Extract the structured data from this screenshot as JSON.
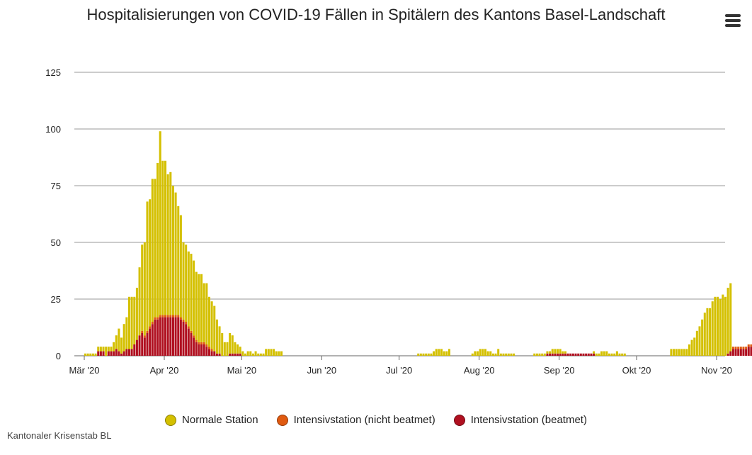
{
  "title": "Hospitalisierungen von COVID-19 Fällen in Spitälern des Kantons Basel-Landschaft",
  "credits": "Kantonaler Krisenstab BL",
  "menu_icon": "hamburger-menu-icon",
  "legend": [
    {
      "name": "Normale Station",
      "color": "#d4c000"
    },
    {
      "name": "Intensivstation (nicht beatmet)",
      "color": "#e05a10"
    },
    {
      "name": "Intensivstation (beatmet)",
      "color": "#b01020"
    }
  ],
  "chart_data": {
    "type": "bar",
    "stacked": true,
    "x_start": "2020-03-01",
    "x_labels": [
      "Mär '20",
      "Apr '20",
      "Mai '20",
      "Jun '20",
      "Jul '20",
      "Aug '20",
      "Sep '20",
      "Okt '20",
      "Nov '20"
    ],
    "y_ticks": [
      0,
      25,
      50,
      75,
      100,
      125
    ],
    "ylim": [
      0,
      125
    ],
    "grid": true,
    "legend_position": "bottom",
    "series": [
      {
        "name": "Intensivstation (beatmet)",
        "color": "#b01020",
        "values": [
          0,
          0,
          0,
          0,
          0,
          2,
          2,
          2,
          0,
          2,
          2,
          2,
          3,
          2,
          1,
          2,
          3,
          3,
          3,
          5,
          7,
          9,
          10,
          8,
          10,
          12,
          14,
          16,
          16,
          17,
          17,
          17,
          17,
          17,
          17,
          17,
          17,
          16,
          15,
          14,
          12,
          10,
          8,
          6,
          5,
          5,
          5,
          4,
          3,
          2,
          2,
          1,
          1,
          0,
          0,
          0,
          1,
          1,
          1,
          1,
          1,
          0,
          0,
          0,
          0,
          0,
          0,
          0,
          0,
          0,
          0,
          0,
          0,
          0,
          0,
          0,
          0,
          0,
          0,
          0,
          0,
          0,
          0,
          0,
          0,
          0,
          0,
          0,
          0,
          0,
          0,
          0,
          0,
          0,
          0,
          0,
          0,
          0,
          0,
          0,
          0,
          0,
          0,
          0,
          0,
          0,
          0,
          0,
          0,
          0,
          0,
          0,
          0,
          0,
          0,
          0,
          0,
          0,
          0,
          0,
          0,
          0,
          0,
          0,
          0,
          0,
          0,
          0,
          0,
          0,
          0,
          0,
          0,
          0,
          0,
          0,
          0,
          0,
          0,
          0,
          0,
          0,
          0,
          0,
          0,
          0,
          0,
          0,
          0,
          0,
          0,
          0,
          0,
          0,
          0,
          0,
          0,
          0,
          0,
          0,
          0,
          0,
          0,
          0,
          0,
          0,
          0,
          0,
          0,
          0,
          0,
          0,
          0,
          0,
          0,
          0,
          0,
          0,
          0,
          1,
          1,
          1,
          1,
          1,
          1,
          1,
          1,
          1,
          1,
          1,
          1,
          1,
          1,
          1,
          1,
          1,
          1,
          1,
          0,
          0,
          0,
          0,
          0,
          0,
          0,
          0,
          0,
          0,
          0,
          0,
          0,
          0,
          0,
          0,
          0,
          0,
          0,
          0,
          0,
          0,
          0,
          0,
          0,
          0,
          0,
          0,
          0,
          0,
          0,
          0,
          0,
          0,
          0,
          0,
          0,
          0,
          0,
          0,
          0,
          0,
          0,
          0,
          0,
          0,
          0,
          0,
          0,
          0,
          0,
          1,
          2,
          3,
          3,
          3,
          3,
          3,
          3,
          4,
          4,
          3,
          3,
          4,
          4,
          3
        ]
      },
      {
        "name": "Intensivstation (nicht beatmet)",
        "color": "#e05a10",
        "values": [
          0,
          0,
          0,
          0,
          0,
          0,
          0,
          0,
          0,
          0,
          0,
          0,
          0,
          0,
          0,
          0,
          0,
          0,
          0,
          0,
          0,
          0,
          1,
          1,
          1,
          1,
          1,
          1,
          1,
          1,
          1,
          1,
          1,
          1,
          1,
          1,
          1,
          1,
          1,
          1,
          1,
          1,
          1,
          1,
          1,
          1,
          1,
          1,
          1,
          1,
          0,
          0,
          0,
          0,
          0,
          0,
          0,
          0,
          0,
          0,
          0,
          0,
          0,
          0,
          0,
          0,
          0,
          0,
          0,
          0,
          0,
          0,
          0,
          0,
          0,
          0,
          0,
          0,
          0,
          0,
          0,
          0,
          0,
          0,
          0,
          0,
          0,
          0,
          0,
          0,
          0,
          0,
          0,
          0,
          0,
          0,
          0,
          0,
          0,
          0,
          0,
          0,
          0,
          0,
          0,
          0,
          0,
          0,
          0,
          0,
          0,
          0,
          0,
          0,
          0,
          0,
          0,
          0,
          0,
          0,
          0,
          0,
          0,
          0,
          0,
          0,
          0,
          0,
          0,
          0,
          0,
          0,
          0,
          0,
          0,
          0,
          0,
          0,
          0,
          0,
          0,
          0,
          0,
          0,
          0,
          0,
          0,
          0,
          0,
          0,
          0,
          0,
          0,
          0,
          0,
          0,
          0,
          0,
          0,
          0,
          0,
          0,
          0,
          0,
          0,
          0,
          0,
          0,
          0,
          0,
          0,
          0,
          0,
          0,
          0,
          0,
          0,
          0,
          0,
          0,
          0,
          0,
          0,
          0,
          0,
          0,
          0,
          0,
          0,
          0,
          0,
          0,
          0,
          0,
          0,
          0,
          0,
          0,
          0,
          0,
          0,
          0,
          0,
          0,
          0,
          0,
          0,
          0,
          0,
          0,
          0,
          0,
          0,
          0,
          0,
          0,
          0,
          0,
          0,
          0,
          0,
          0,
          0,
          0,
          0,
          0,
          0,
          0,
          0,
          0,
          0,
          0,
          0,
          0,
          0,
          0,
          0,
          0,
          0,
          0,
          0,
          0,
          0,
          0,
          0,
          0,
          0,
          0,
          0,
          0,
          0,
          1,
          1,
          1,
          1,
          1,
          1,
          1,
          1,
          1,
          1,
          1,
          1,
          1,
          1
        ]
      },
      {
        "name": "Normale Station",
        "color": "#d4c000",
        "values": [
          1,
          1,
          1,
          1,
          1,
          2,
          2,
          2,
          4,
          2,
          2,
          4,
          6,
          10,
          7,
          12,
          14,
          23,
          23,
          21,
          23,
          30,
          38,
          41,
          57,
          56,
          63,
          61,
          68,
          81,
          68,
          68,
          62,
          63,
          57,
          54,
          48,
          45,
          34,
          34,
          33,
          34,
          33,
          30,
          30,
          30,
          26,
          27,
          22,
          21,
          20,
          15,
          12,
          10,
          6,
          6,
          9,
          8,
          5,
          4,
          3,
          2,
          1,
          2,
          2,
          1,
          2,
          1,
          1,
          1,
          3,
          3,
          3,
          3,
          2,
          2,
          2,
          0,
          0,
          0,
          0,
          0,
          0,
          0,
          0,
          0,
          0,
          0,
          0,
          0,
          0,
          0,
          0,
          0,
          0,
          0,
          0,
          0,
          0,
          0,
          0,
          0,
          0,
          0,
          0,
          0,
          0,
          0,
          0,
          0,
          0,
          0,
          0,
          0,
          0,
          0,
          0,
          0,
          0,
          0,
          0,
          0,
          0,
          0,
          0,
          0,
          0,
          0,
          0,
          1,
          1,
          1,
          1,
          1,
          1,
          2,
          3,
          3,
          3,
          2,
          2,
          3,
          0,
          0,
          0,
          0,
          0,
          0,
          0,
          0,
          1,
          2,
          2,
          3,
          3,
          3,
          2,
          2,
          1,
          1,
          3,
          1,
          1,
          1,
          1,
          1,
          1,
          0,
          0,
          0,
          0,
          0,
          0,
          0,
          1,
          1,
          1,
          1,
          1,
          1,
          1,
          2,
          2,
          2,
          2,
          1,
          1,
          0,
          0,
          0,
          0,
          0,
          0,
          0,
          0,
          0,
          0,
          1,
          1,
          1,
          2,
          2,
          2,
          1,
          1,
          1,
          2,
          1,
          1,
          1,
          0,
          0,
          0,
          0,
          0,
          0,
          0,
          0,
          0,
          0,
          0,
          0,
          0,
          0,
          0,
          0,
          0,
          3,
          3,
          3,
          3,
          3,
          3,
          3,
          5,
          7,
          8,
          11,
          13,
          16,
          19,
          21,
          21,
          24,
          26,
          26,
          25,
          27,
          26,
          29,
          30
        ]
      }
    ]
  }
}
